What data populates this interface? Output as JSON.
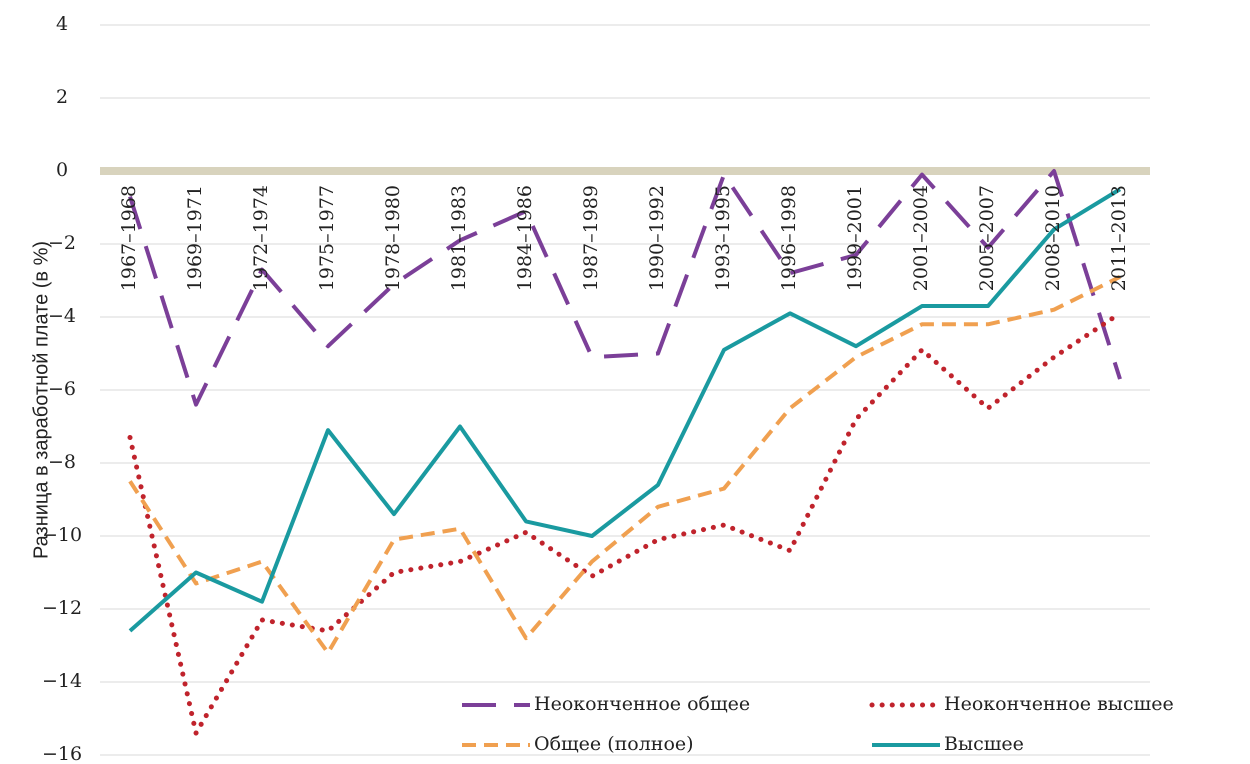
{
  "chart_data": {
    "type": "line",
    "y_label": "Разница в заработной плате (в %)",
    "categories": [
      "1967–1968",
      "1969–1971",
      "1972–1974",
      "1975–1977",
      "1978–1980",
      "1981–1983",
      "1984–1986",
      "1987–1989",
      "1990–1992",
      "1993–1995",
      "1996–1998",
      "1999–2001",
      "2001–2004",
      "2005–2007",
      "2008–2010",
      "2011–2013"
    ],
    "series": [
      {
        "name": "Неоконченное общее",
        "color": "#7b3f98",
        "style": "long-dash",
        "values": [
          -0.7,
          -6.4,
          -2.7,
          -4.8,
          -3.1,
          -1.9,
          -1.1,
          -5.1,
          -5.0,
          -0.1,
          -2.8,
          -2.3,
          -0.1,
          -2.1,
          0,
          -5.7
        ]
      },
      {
        "name": "Неоконченное высшее",
        "color": "#c0232c",
        "style": "dotted",
        "values": [
          -7.3,
          -15.4,
          -12.3,
          -12.6,
          -11.0,
          -10.7,
          -9.9,
          -11.1,
          -10.1,
          -9.7,
          -10.4,
          -6.8,
          -4.9,
          -6.5,
          -5.1,
          -3.9
        ]
      },
      {
        "name": "Общее (полное)",
        "color": "#f0a050",
        "style": "dashed",
        "values": [
          -8.5,
          -11.3,
          -10.7,
          -13.2,
          -10.1,
          -9.8,
          -12.8,
          -10.7,
          -9.2,
          -8.7,
          -6.5,
          -5.1,
          -4.2,
          -4.2,
          -3.8,
          -2.9
        ]
      },
      {
        "name": "Высшее",
        "color": "#1a9aa0",
        "style": "solid",
        "values": [
          -12.6,
          -11.0,
          -11.8,
          -7.1,
          -9.4,
          -7.0,
          -9.6,
          -10.0,
          -8.6,
          -4.9,
          -3.9,
          -4.8,
          -3.7,
          -3.7,
          -1.6,
          -0.5
        ]
      }
    ],
    "ylim": [
      -16,
      4
    ],
    "yticks": [
      4,
      2,
      0,
      {
        "value": -2,
        "label": "−2"
      },
      {
        "value": -4,
        "label": "−4"
      },
      {
        "value": -6,
        "label": "−6"
      },
      {
        "value": -8,
        "label": "−8"
      },
      {
        "value": -10,
        "label": "−10"
      },
      {
        "value": -12,
        "label": "−12"
      },
      {
        "value": -14,
        "label": "−14"
      },
      {
        "value": -16,
        "label": "−16"
      }
    ],
    "grid": true
  }
}
